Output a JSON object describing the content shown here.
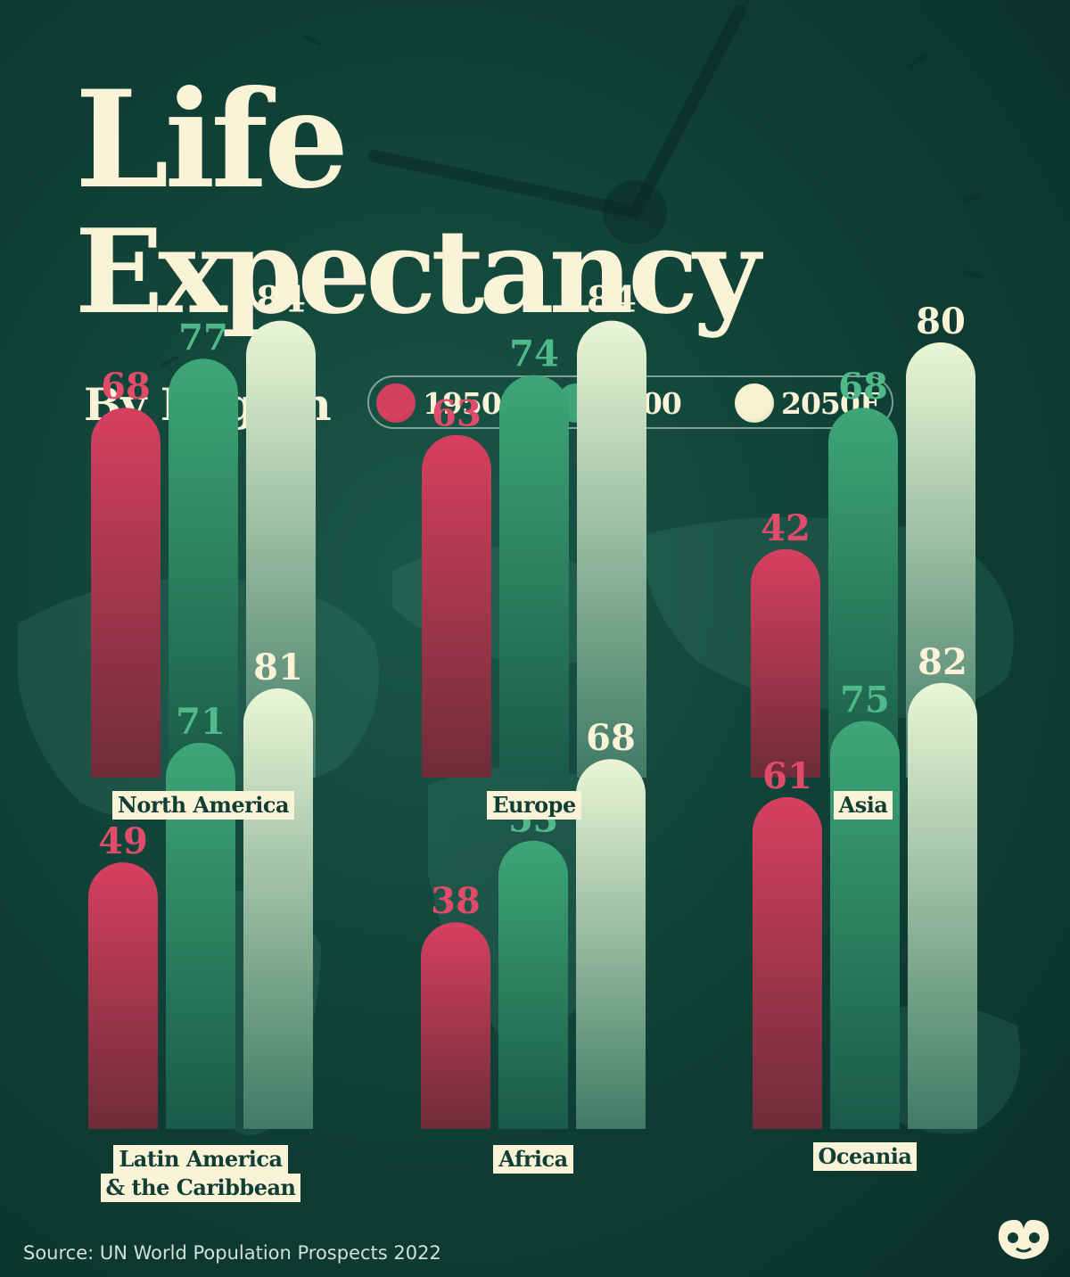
{
  "title": {
    "line1": "Life",
    "line2": "Expectancy"
  },
  "subtitle": "By Region",
  "legend": [
    {
      "label": "1950",
      "color": "#d6405f"
    },
    {
      "label": "2000",
      "color": "#3ea678"
    },
    {
      "label": "2050F",
      "color": "#f4f2cf"
    }
  ],
  "chart_data": {
    "type": "bar",
    "series_names": [
      "1950",
      "2000",
      "2050F"
    ],
    "series_colors": [
      "#d6405f",
      "#3ea678",
      "#eaf6d6"
    ],
    "label_colors": [
      "#e14b6a",
      "#4fb98a",
      "#fbf3d7"
    ],
    "regions": [
      {
        "label_lines": [
          "North America"
        ],
        "values": [
          68,
          77,
          84
        ]
      },
      {
        "label_lines": [
          "Europe"
        ],
        "values": [
          63,
          74,
          84
        ]
      },
      {
        "label_lines": [
          "Asia"
        ],
        "values": [
          42,
          68,
          80
        ]
      },
      {
        "label_lines": [
          "Latin America",
          "& the Caribbean"
        ],
        "values": [
          49,
          71,
          81
        ]
      },
      {
        "label_lines": [
          "Africa"
        ],
        "values": [
          38,
          53,
          68
        ]
      },
      {
        "label_lines": [
          "Oceania"
        ],
        "values": [
          61,
          75,
          82
        ]
      }
    ]
  },
  "source": "Source: UN World Population Prospects 2022",
  "logo_icon": "visual-capitalist-logo-icon"
}
